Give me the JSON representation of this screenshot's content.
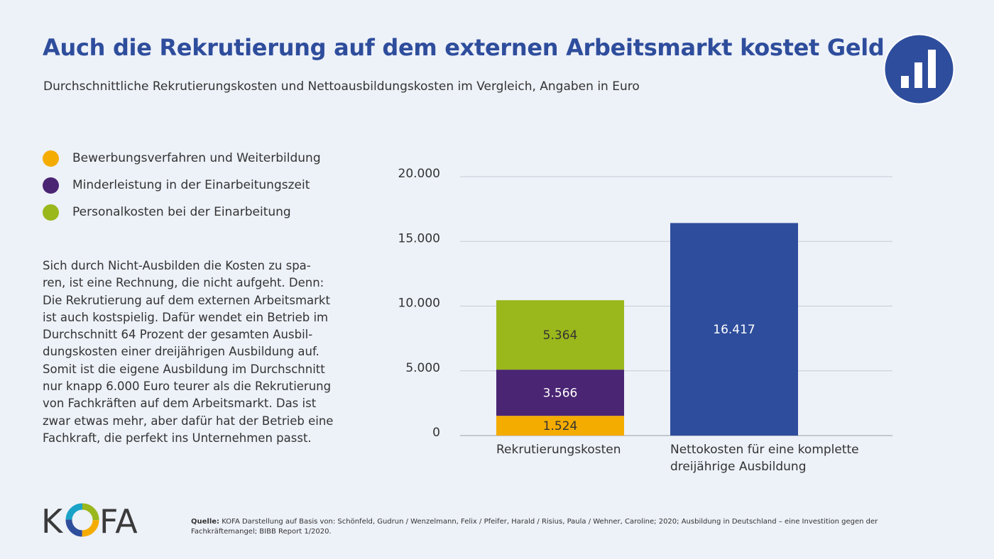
{
  "title": "Auch die Rekrutierung auf dem externen Arbeitsmarkt kostet Geld",
  "subtitle": "Durchschnittliche Rekrutierungskosten und Nettoausbildungskosten im Vergleich, Angaben in Euro",
  "header_icon": "bar-chart-icon",
  "legend": [
    {
      "label": "Bewerbungsverfahren und Weiterbildung",
      "color": "#f5ac00"
    },
    {
      "label": "Minderleistung in der Einarbeitungszeit",
      "color": "#4a2573"
    },
    {
      "label": "Personalkosten bei der Einarbeitung",
      "color": "#9ab71c"
    }
  ],
  "body_lines": [
    "Sich durch Nicht-Ausbilden die Kosten zu spa-",
    "ren, ist eine Rechnung, die nicht aufgeht. Denn:",
    "Die Rekrutierung auf dem externen Arbeitsmarkt",
    "ist auch kostspielig. Dafür wendet ein Betrieb im",
    "Durchschnitt 64 Prozent der gesamten Ausbil-",
    "dungskosten einer dreijährigen Ausbildung auf.",
    "Somit ist die eigene Ausbildung im Durchschnitt",
    "nur knapp 6.000 Euro teurer als die Rekrutierung",
    "von Fachkräften auf dem Arbeitsmarkt. Das ist",
    "zwar etwas mehr, aber dafür hat der Betrieb eine",
    "Fachkraft, die perfekt ins Unternehmen passt."
  ],
  "chart_data": {
    "type": "bar",
    "stacked": true,
    "categories": [
      [
        "Rekrutierungskosten"
      ],
      [
        "Nettokosten für eine komplette",
        "dreijährige Ausbildung"
      ]
    ],
    "series": [
      {
        "name": "Bewerbungsverfahren und Weiterbildung",
        "color": "#f5ac00",
        "values": [
          1524,
          0
        ],
        "labels": [
          "1.524",
          ""
        ]
      },
      {
        "name": "Minderleistung in der Einarbeitungszeit",
        "color": "#4a2573",
        "values": [
          3566,
          0
        ],
        "labels": [
          "3.566",
          ""
        ]
      },
      {
        "name": "Personalkosten bei der Einarbeitung",
        "color": "#9ab71c",
        "values": [
          5364,
          0
        ],
        "labels": [
          "5.364",
          ""
        ]
      },
      {
        "name": "",
        "color": "#2e4d9c",
        "values": [
          0,
          16417
        ],
        "labels": [
          "",
          "16.417"
        ]
      }
    ],
    "yticks": [
      0,
      5000,
      10000,
      15000,
      20000
    ],
    "ytick_labels": [
      "0",
      "5.000",
      "10.000",
      "15.000",
      "20.000"
    ],
    "ylim": [
      0,
      20000
    ],
    "grid": true,
    "legend_position": "top-left",
    "xlabel": "",
    "ylabel": ""
  },
  "logo_text": "KOFA",
  "source": {
    "label": "Quelle:",
    "text": "KOFA Darstellung auf Basis von: Schönfeld, Gudrun / Wenzelmann, Felix / Pfeifer, Harald / Risius, Paula / Wehner, Caroline; 2020; Ausbildung in Deutschland – eine Investition gegen der Fachkräftemangel; BIBB Report 1/2020."
  }
}
